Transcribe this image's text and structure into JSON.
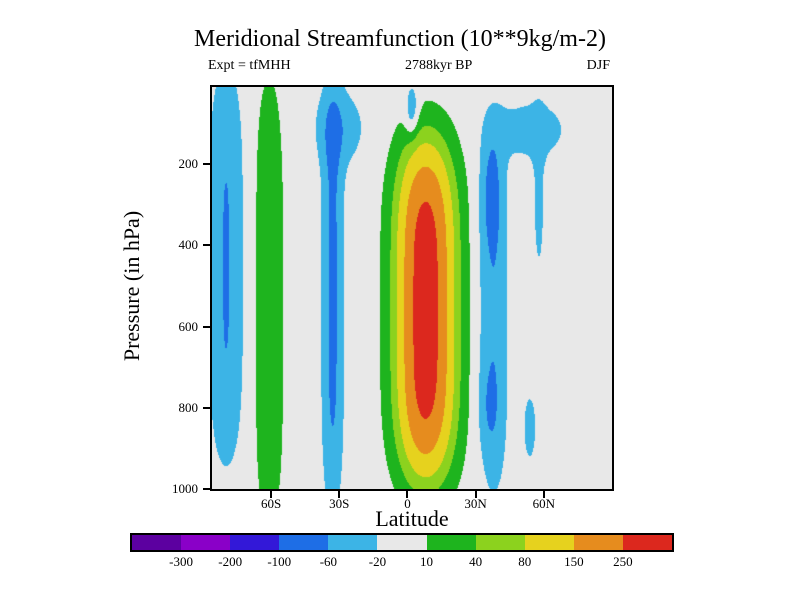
{
  "title": "Meridional Streamfunction (10**9kg/m-2)",
  "subtitle_left": "Expt = tfMHH",
  "subtitle_center": "2788kyr BP",
  "subtitle_right": "DJF",
  "xlabel": "Latitude",
  "ylabel": "Pressure (in hPa)",
  "chart_data": {
    "type": "heatmap",
    "title": "Meridional Streamfunction (10**9kg/m-2)",
    "experiment": "tfMHH",
    "time": "2788kyr BP",
    "season": "DJF",
    "value_units": "10**9 kg/m-2",
    "x_axis": {
      "label": "Latitude",
      "min": -86,
      "max": 90,
      "ticks": [
        {
          "value": -60,
          "label": "60S"
        },
        {
          "value": -30,
          "label": "30S"
        },
        {
          "value": 0,
          "label": "0"
        },
        {
          "value": 30,
          "label": "30N"
        },
        {
          "value": 60,
          "label": "60N"
        }
      ]
    },
    "y_axis": {
      "label": "Pressure (in hPa)",
      "min": 10,
      "max": 1000,
      "ticks": [
        {
          "value": 200,
          "label": "200"
        },
        {
          "value": 400,
          "label": "400"
        },
        {
          "value": 600,
          "label": "600"
        },
        {
          "value": 800,
          "label": "800"
        },
        {
          "value": 1000,
          "label": "1000"
        }
      ]
    },
    "levels": [
      -300,
      -200,
      -100,
      -60,
      -20,
      10,
      40,
      80,
      150,
      250
    ],
    "colors": [
      "#5c00a0",
      "#8a00c8",
      "#3318d8",
      "#1e6ee6",
      "#3cb4e6",
      "#e8e8e8",
      "#1eb41e",
      "#8cd21e",
      "#e6d21e",
      "#e68c1e",
      "#dc281e"
    ],
    "background_color": "#e8e8e8",
    "features": [
      {
        "name": "hadley-cell-positive-max-300",
        "lat": 8,
        "p": 560,
        "wlat": 10.8,
        "wp": 380,
        "amp": 320,
        "pl": 1,
        "pp": 2
      },
      {
        "name": "south-60s-green-column",
        "lat": -61,
        "p": 540,
        "wlat": 5.5,
        "wp": 520,
        "amp": 35,
        "pl": 1,
        "pp": 2
      },
      {
        "name": "south-polar-blue-column",
        "lat": -80,
        "p": 450,
        "wlat": 7,
        "wp": 480,
        "amp": -62,
        "pl": 1,
        "pp": 2
      },
      {
        "name": "south-35s-blue-column",
        "lat": -33,
        "p": 520,
        "wlat": 4.5,
        "wp": 520,
        "amp": -70,
        "pl": 1,
        "pp": 2
      },
      {
        "name": "south-35s-upper-widening",
        "lat": -30,
        "p": 110,
        "wlat": 11,
        "wp": 95,
        "amp": -42,
        "pl": 1,
        "pp": 1
      },
      {
        "name": "equator-tropopause-notch",
        "lat": 2,
        "p": 70,
        "wlat": 3,
        "wp": 70,
        "amp": -45,
        "pl": 1,
        "pp": 1
      },
      {
        "name": "north-ferrel-blue-column",
        "lat": 38,
        "p": 550,
        "wlat": 6,
        "wp": 455,
        "amp": -55,
        "pl": 1,
        "pp": 2
      },
      {
        "name": "north-ferrel-upper-core",
        "lat": 37,
        "p": 270,
        "wlat": 4,
        "wp": 130,
        "amp": -40,
        "pl": 1,
        "pp": 1
      },
      {
        "name": "north-ferrel-lower-core",
        "lat": 36,
        "p": 800,
        "wlat": 4,
        "wp": 100,
        "amp": -25,
        "pl": 1,
        "pp": 1
      },
      {
        "name": "north-high-lat-top-blob",
        "lat": 55,
        "p": 115,
        "wlat": 16,
        "wp": 75,
        "amp": -38,
        "pl": 1,
        "pp": 1
      },
      {
        "name": "north-58n-upper-sliver",
        "lat": 58,
        "p": 300,
        "wlat": 3,
        "wp": 220,
        "amp": -28,
        "pl": 1,
        "pp": 1
      },
      {
        "name": "north-54n-low-level-patch",
        "lat": 54,
        "p": 850,
        "wlat": 4,
        "wp": 120,
        "amp": -28,
        "pl": 1,
        "pp": 1
      }
    ]
  }
}
